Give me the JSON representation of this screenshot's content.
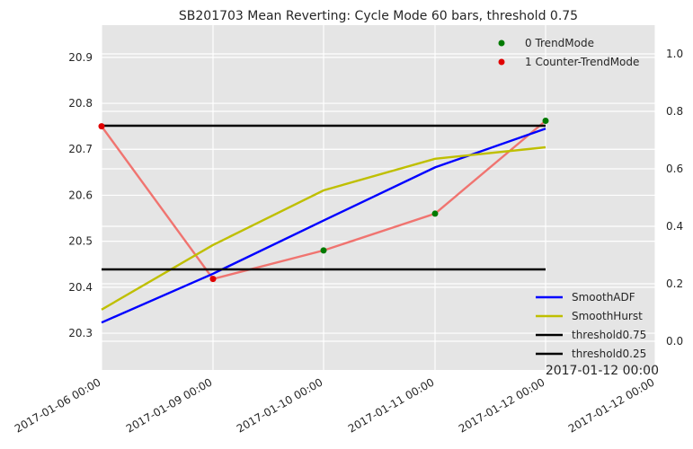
{
  "chart_data": {
    "type": "line",
    "title": "SB201703 Mean Reverting: Cycle Mode 60 bars, threshold 0.75",
    "categories": [
      "2017-01-06 00:00",
      "2017-01-09 00:00",
      "2017-01-10 00:00",
      "2017-01-11 00:00",
      "2017-01-12 00:00"
    ],
    "x_tick_labels": [
      "2017-01-06 00:00",
      "2017-01-09 00:00",
      "2017-01-10 00:00",
      "2017-01-11 00:00",
      "2017-01-12 00:00",
      "2017-01-12 00:00"
    ],
    "offset_label": "2017-01-12 00:00",
    "left_axis": {
      "ylim": [
        20.22,
        20.97
      ],
      "ticks": [
        "20.3",
        "20.4",
        "20.5",
        "20.6",
        "20.7",
        "20.8",
        "20.9"
      ]
    },
    "right_axis": {
      "ylim": [
        -0.1,
        1.1
      ],
      "ticks": [
        "0.0",
        "0.2",
        "0.4",
        "0.6",
        "0.8",
        "1.0"
      ]
    },
    "price_line": {
      "color": "#f07470",
      "values": [
        20.75,
        20.418,
        20.48,
        20.56,
        20.762
      ]
    },
    "scatter_series": [
      {
        "name": "0 TrendMode",
        "color": "#007a00",
        "x_index": [
          2,
          3,
          4
        ],
        "values": [
          20.48,
          20.56,
          20.762
        ]
      },
      {
        "name": "1 Counter-TrendMode",
        "color": "#e00000",
        "x_index": [
          0,
          1
        ],
        "values": [
          20.75,
          20.418
        ]
      }
    ],
    "series": [
      {
        "name": "SmoothADF",
        "color": "#0000ff",
        "axis": "right",
        "values": [
          0.065,
          0.235,
          0.42,
          0.605,
          0.74
        ]
      },
      {
        "name": "SmoothHurst",
        "color": "#bfbf00",
        "axis": "right",
        "values": [
          0.11,
          0.335,
          0.525,
          0.635,
          0.675
        ]
      },
      {
        "name": "threshold0.75",
        "color": "#000000",
        "axis": "right",
        "values": [
          0.75,
          0.75,
          0.75,
          0.75,
          0.75
        ]
      },
      {
        "name": "threshold0.25",
        "color": "#000000",
        "axis": "right",
        "values": [
          0.25,
          0.25,
          0.25,
          0.25,
          0.25
        ]
      }
    ],
    "legend_upper": "top-right",
    "legend_lower": "bottom-right",
    "grid": true,
    "background": "#e5e5e5"
  }
}
